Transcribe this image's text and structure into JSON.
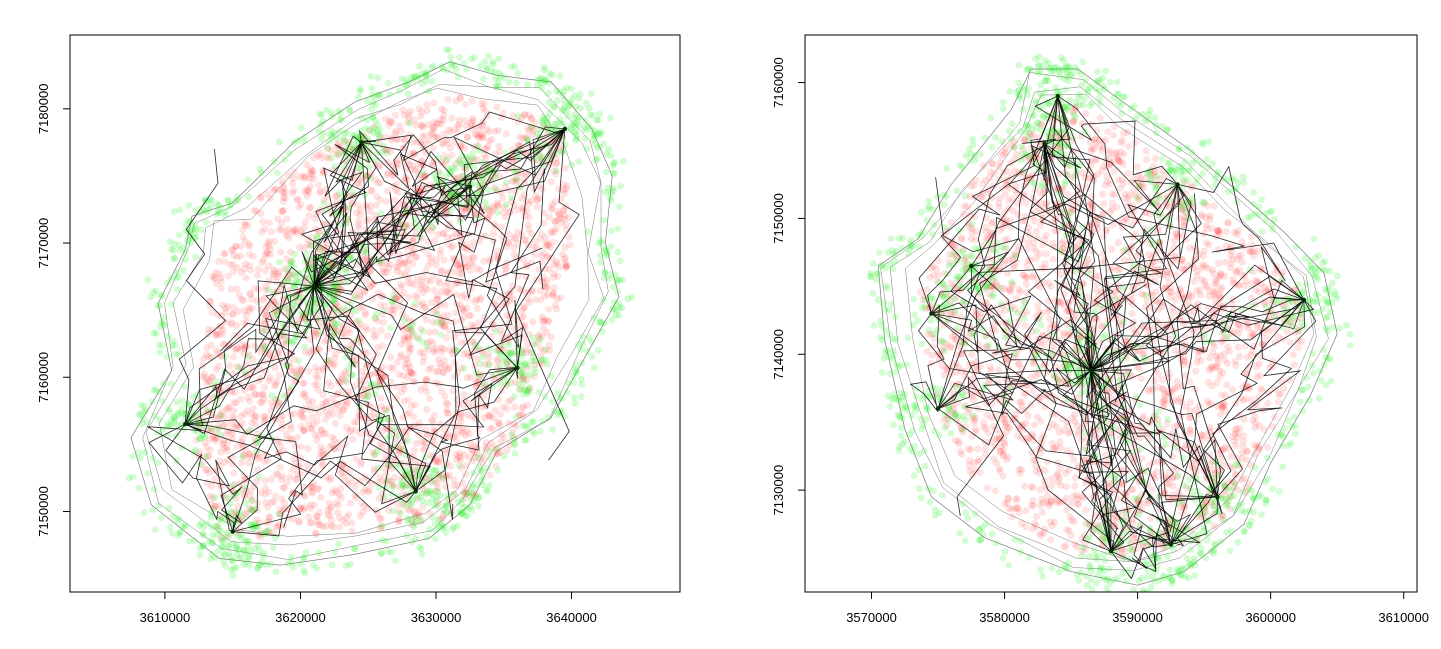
{
  "colors": {
    "background": "#ffffff",
    "axis": "#000000",
    "points_red": "#ff2a2a",
    "points_green": "#22ee22",
    "paths": "#000000",
    "boundary": "#7a7a7a",
    "tick_label": "#000000"
  },
  "chart_data": [
    {
      "type": "scatter",
      "title": "",
      "xlabel": "",
      "ylabel": "",
      "xlim": [
        3603000,
        3648000
      ],
      "ylim": [
        7144000,
        7185500
      ],
      "x_ticks": [
        3610000,
        3620000,
        3630000,
        3640000
      ],
      "x_tick_labels": [
        "3610000",
        "3620000",
        "3630000",
        "3640000"
      ],
      "y_ticks": [
        7150000,
        7160000,
        7170000,
        7180000
      ],
      "y_tick_labels": [
        "7150000",
        "7160000",
        "7170000",
        "7180000"
      ],
      "grid": false,
      "legend": "none",
      "layers": [
        "boundary",
        "red-points",
        "green-points",
        "movement-paths"
      ],
      "red_region": [
        [
          3614000,
          7148000
        ],
        [
          3612000,
          7156000
        ],
        [
          3613500,
          7168000
        ],
        [
          3617000,
          7173500
        ],
        [
          3621000,
          7176500
        ],
        [
          3626000,
          7179500
        ],
        [
          3631000,
          7181000
        ],
        [
          3636000,
          7180000
        ],
        [
          3639500,
          7178000
        ],
        [
          3640000,
          7170000
        ],
        [
          3638500,
          7162000
        ],
        [
          3636500,
          7157000
        ],
        [
          3634000,
          7152000
        ],
        [
          3630000,
          7149000
        ],
        [
          3624000,
          7148500
        ],
        [
          3618000,
          7148000
        ]
      ],
      "boundary": [
        [
          3614000,
          7146500
        ],
        [
          3609000,
          7150500
        ],
        [
          3607500,
          7155500
        ],
        [
          3610500,
          7160500
        ],
        [
          3609500,
          7165500
        ],
        [
          3611500,
          7169500
        ],
        [
          3612000,
          7172000
        ],
        [
          3615000,
          7173000
        ],
        [
          3619500,
          7177500
        ],
        [
          3624000,
          7180500
        ],
        [
          3628000,
          7182000
        ],
        [
          3631000,
          7183500
        ],
        [
          3634500,
          7182500
        ],
        [
          3638500,
          7182000
        ],
        [
          3641500,
          7178500
        ],
        [
          3643000,
          7175000
        ],
        [
          3642500,
          7170000
        ],
        [
          3643500,
          7166000
        ],
        [
          3641000,
          7161500
        ],
        [
          3638500,
          7157000
        ],
        [
          3634500,
          7154500
        ],
        [
          3632500,
          7150500
        ],
        [
          3629500,
          7148000
        ],
        [
          3624000,
          7146800
        ],
        [
          3618500,
          7146000
        ]
      ],
      "hubs": [
        [
          3621000,
          7166800
        ],
        [
          3632500,
          7174200
        ],
        [
          3611500,
          7156500
        ],
        [
          3639500,
          7178500
        ],
        [
          3636000,
          7160700
        ],
        [
          3615000,
          7148500
        ],
        [
          3628500,
          7151500
        ],
        [
          3624500,
          7177500
        ]
      ],
      "point_counts": {
        "red": 2600,
        "green": 1500
      }
    },
    {
      "type": "scatter",
      "title": "",
      "xlabel": "",
      "ylabel": "",
      "xlim": [
        3565000,
        3611000
      ],
      "ylim": [
        7122500,
        7163500
      ],
      "x_ticks": [
        3570000,
        3580000,
        3590000,
        3600000,
        3610000
      ],
      "x_tick_labels": [
        "3570000",
        "3580000",
        "3590000",
        "3600000",
        "3610000"
      ],
      "y_ticks": [
        7130000,
        7140000,
        7150000,
        7160000
      ],
      "y_tick_labels": [
        "7130000",
        "7140000",
        "7150000",
        "7160000"
      ],
      "grid": false,
      "legend": "none",
      "layers": [
        "boundary",
        "red-points",
        "green-points",
        "movement-paths"
      ],
      "red_region": [
        [
          3585000,
          7125500
        ],
        [
          3581000,
          7127500
        ],
        [
          3577000,
          7131500
        ],
        [
          3575000,
          7136000
        ],
        [
          3574000,
          7141000
        ],
        [
          3573500,
          7145000
        ],
        [
          3576000,
          7150000
        ],
        [
          3578500,
          7154000
        ],
        [
          3582500,
          7157000
        ],
        [
          3584500,
          7159000
        ],
        [
          3590000,
          7156000
        ],
        [
          3595000,
          7151500
        ],
        [
          3599000,
          7148500
        ],
        [
          3602000,
          7145500
        ],
        [
          3602500,
          7141000
        ],
        [
          3601000,
          7136000
        ],
        [
          3598500,
          7130000
        ],
        [
          3595000,
          7126500
        ],
        [
          3590000,
          7125000
        ]
      ],
      "boundary": [
        [
          3585000,
          7124000
        ],
        [
          3578500,
          7126500
        ],
        [
          3574500,
          7129500
        ],
        [
          3572500,
          7134500
        ],
        [
          3571000,
          7141000
        ],
        [
          3570500,
          7146500
        ],
        [
          3573500,
          7148500
        ],
        [
          3576000,
          7152500
        ],
        [
          3580500,
          7158000
        ],
        [
          3582000,
          7161000
        ],
        [
          3585500,
          7161000
        ],
        [
          3589000,
          7158500
        ],
        [
          3594000,
          7155000
        ],
        [
          3597500,
          7152000
        ],
        [
          3601000,
          7149000
        ],
        [
          3604000,
          7146000
        ],
        [
          3605000,
          7141500
        ],
        [
          3603000,
          7137000
        ],
        [
          3600000,
          7132000
        ],
        [
          3598000,
          7127500
        ],
        [
          3593500,
          7124000
        ],
        [
          3590000,
          7123000
        ]
      ],
      "hubs": [
        [
          3586500,
          7138800
        ],
        [
          3584000,
          7159000
        ],
        [
          3583000,
          7155500
        ],
        [
          3575000,
          7136000
        ],
        [
          3574500,
          7143000
        ],
        [
          3602500,
          7144000
        ],
        [
          3596000,
          7129500
        ],
        [
          3592500,
          7126000
        ],
        [
          3588000,
          7125500
        ],
        [
          3577500,
          7146500
        ],
        [
          3593000,
          7152500
        ]
      ],
      "point_counts": {
        "red": 2200,
        "green": 1300
      }
    }
  ]
}
